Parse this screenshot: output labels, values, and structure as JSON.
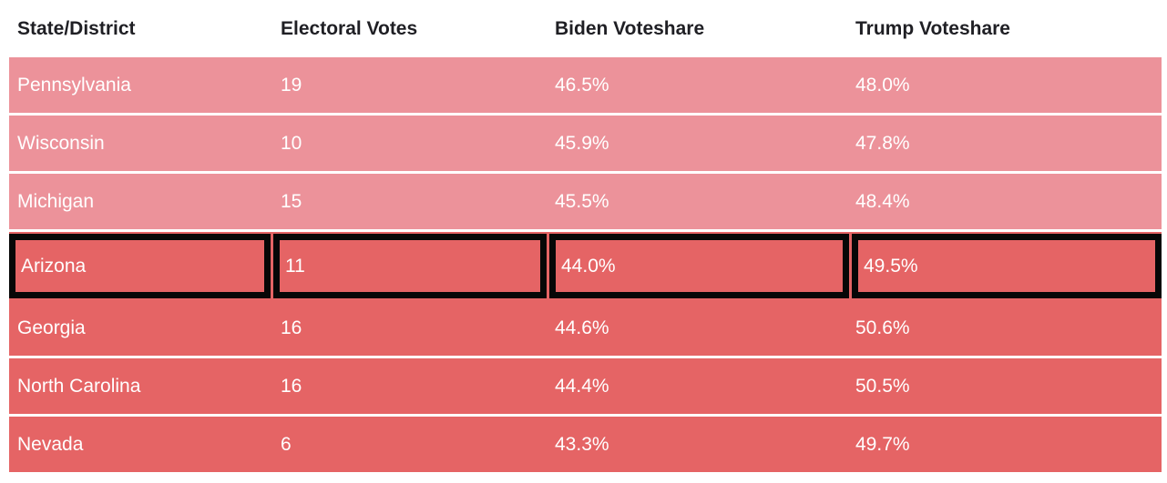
{
  "colors": {
    "page_bg": "#ffffff",
    "row_light": "#EC929A",
    "row_dark": "#E56465",
    "header_text": "#1F1F24",
    "cell_text": "#FFFFFF",
    "highlight_border": "#070707"
  },
  "chart_data": {
    "type": "table",
    "columns": [
      "State/District",
      "Electoral Votes",
      "Biden Voteshare",
      "Trump Voteshare"
    ],
    "rows": [
      {
        "state": "Pennsylvania",
        "electoral_votes": 19,
        "biden": "46.5%",
        "trump": "48.0%",
        "shade": "light",
        "highlighted": false
      },
      {
        "state": "Wisconsin",
        "electoral_votes": 10,
        "biden": "45.9%",
        "trump": "47.8%",
        "shade": "light",
        "highlighted": false
      },
      {
        "state": "Michigan",
        "electoral_votes": 15,
        "biden": "45.5%",
        "trump": "48.4%",
        "shade": "light",
        "highlighted": false
      },
      {
        "state": "Arizona",
        "electoral_votes": 11,
        "biden": "44.0%",
        "trump": "49.5%",
        "shade": "dark",
        "highlighted": true
      },
      {
        "state": "Georgia",
        "electoral_votes": 16,
        "biden": "44.6%",
        "trump": "50.6%",
        "shade": "dark",
        "highlighted": false
      },
      {
        "state": "North Carolina",
        "electoral_votes": 16,
        "biden": "44.4%",
        "trump": "50.5%",
        "shade": "dark",
        "highlighted": false
      },
      {
        "state": "Nevada",
        "electoral_votes": 6,
        "biden": "43.3%",
        "trump": "49.7%",
        "shade": "dark",
        "highlighted": false
      }
    ],
    "layout_hints": {
      "header_background": "white",
      "row_separator": "thin white line",
      "highlight_style": "thick black border around each cell of Arizona row"
    }
  }
}
